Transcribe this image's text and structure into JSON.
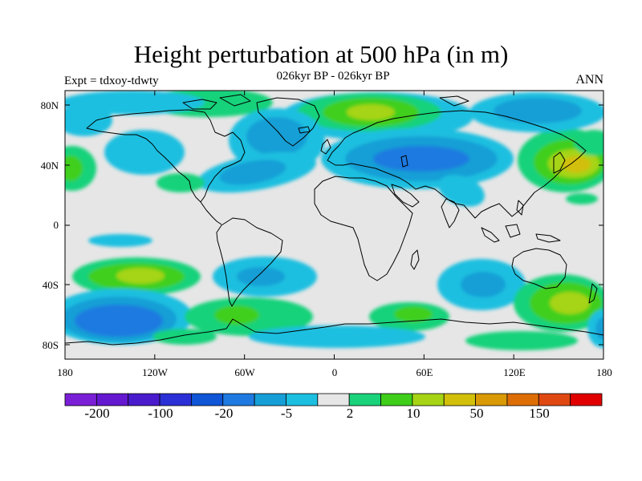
{
  "title": "Height perturbation at 500 hPa (in m)",
  "subtitle": "026kyr BP - 026kyr BP",
  "left_label": "Expt = tdxoy-tdwty",
  "right_label": "ANN",
  "lat_ticks": [
    "80N",
    "40N",
    "0",
    "40S",
    "80S"
  ],
  "lon_ticks": [
    "180",
    "120W",
    "60W",
    "0",
    "60E",
    "120E",
    "180"
  ],
  "colorbar": {
    "colors": [
      "#7a1fd6",
      "#6418d0",
      "#4a1bcc",
      "#2b2fd6",
      "#0f55d6",
      "#1e7ae0",
      "#169fd6",
      "#1cbfe0",
      "#e6e6e6",
      "#19d27a",
      "#3fcf1a",
      "#a6d414",
      "#d2bf0a",
      "#d99a06",
      "#dd6e06",
      "#e04812",
      "#e00000"
    ],
    "labels": [
      "-200",
      "-100",
      "-20",
      "-5",
      "2",
      "10",
      "50",
      "150"
    ]
  },
  "colors": {
    "neutral": "#e6e6e6",
    "light_blue": "#1cbfe0",
    "mid_blue": "#169fd6",
    "blue": "#1e7ae0",
    "deep_blue": "#0f55d6",
    "light_green": "#19d27a",
    "green": "#3fcf1a",
    "yellow_green": "#a6d414",
    "yellow": "#d2bf0a"
  }
}
